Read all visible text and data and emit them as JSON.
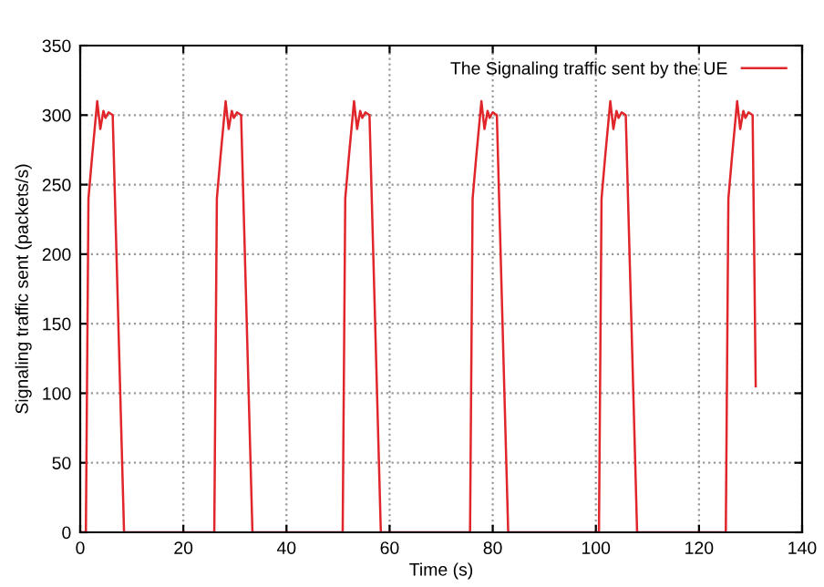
{
  "chart_data": {
    "type": "line",
    "xlabel": "Time (s)",
    "ylabel": "Signaling traffic sent (packets/s)",
    "xlim": [
      0,
      140
    ],
    "ylim": [
      0,
      350
    ],
    "xticks": [
      0,
      20,
      40,
      60,
      80,
      100,
      120,
      140
    ],
    "yticks": [
      0,
      50,
      100,
      150,
      200,
      250,
      300,
      350
    ],
    "grid": true,
    "legend": "top right",
    "marker": "none",
    "line_style": "solid",
    "series": [
      {
        "name": "The Signaling traffic sent by the UE",
        "color": "#e0262a",
        "x": [
          0,
          1.1,
          1.6,
          2.3,
          3.3,
          3.9,
          4.5,
          4.9,
          5.5,
          6.3,
          8.5,
          26.0,
          26.5,
          27.2,
          28.2,
          28.8,
          29.4,
          29.8,
          30.4,
          31.2,
          33.4,
          50.9,
          51.4,
          52.1,
          53.1,
          53.7,
          54.3,
          54.7,
          55.3,
          56.1,
          58.3,
          75.6,
          76.1,
          76.8,
          77.8,
          78.4,
          79.0,
          79.4,
          80.0,
          80.8,
          83.0,
          100.6,
          101.1,
          101.8,
          102.8,
          103.4,
          104.0,
          104.4,
          105.0,
          105.8,
          108.0,
          125.2,
          125.7,
          126.4,
          127.4,
          128.0,
          128.6,
          129.0,
          129.6,
          130.4,
          131.0
        ],
        "values": [
          0,
          0,
          240,
          270,
          310,
          290,
          303,
          298,
          302,
          300,
          0,
          0,
          240,
          270,
          310,
          290,
          303,
          298,
          302,
          300,
          0,
          0,
          240,
          270,
          310,
          290,
          303,
          298,
          302,
          300,
          0,
          0,
          240,
          270,
          310,
          290,
          303,
          298,
          302,
          300,
          0,
          0,
          240,
          270,
          310,
          290,
          303,
          298,
          302,
          300,
          0,
          0,
          240,
          270,
          310,
          290,
          303,
          298,
          302,
          300,
          105
        ]
      }
    ]
  }
}
